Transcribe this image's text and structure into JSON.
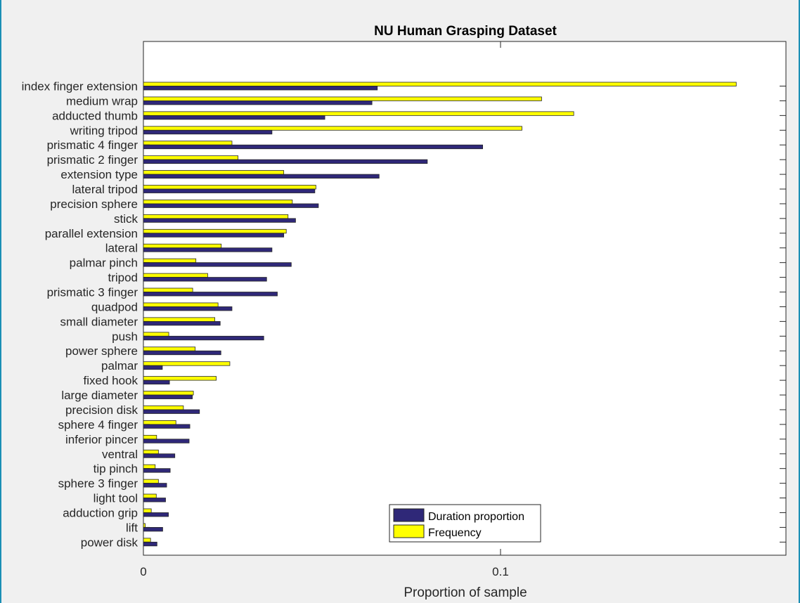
{
  "chart_data": {
    "type": "bar",
    "orientation": "horizontal",
    "title": "NU Human Grasping Dataset",
    "xlabel": "Proportion of sample",
    "ylabel": "",
    "xlim": [
      0,
      0.18
    ],
    "xticks": [
      0,
      0.1
    ],
    "xtick_labels": [
      "0",
      "0.1"
    ],
    "grid": false,
    "legend_position": "bottom-center",
    "categories": [
      "index finger extension",
      "medium wrap",
      "adducted thumb",
      "writing tripod",
      "prismatic 4 finger",
      "prismatic 2 finger",
      "extension type",
      "lateral tripod",
      "precision sphere",
      "stick",
      "parallel extension",
      "lateral",
      "palmar pinch",
      "tripod",
      "prismatic 3 finger",
      "quadpod",
      "small diameter",
      "push",
      "power sphere",
      "palmar",
      "fixed hook",
      "large diameter",
      "precision disk",
      "sphere 4 finger",
      "inferior pincer",
      "ventral",
      "tip pinch",
      "sphere 3 finger",
      "light tool",
      "adduction grip",
      "lift",
      "power disk"
    ],
    "series": [
      {
        "name": "Duration proportion",
        "color": "#2f2878",
        "values": [
          0.0655,
          0.064,
          0.0508,
          0.036,
          0.095,
          0.0795,
          0.066,
          0.048,
          0.049,
          0.0426,
          0.0393,
          0.036,
          0.0414,
          0.0345,
          0.0375,
          0.0248,
          0.0215,
          0.0337,
          0.0217,
          0.0053,
          0.0073,
          0.0137,
          0.0157,
          0.013,
          0.0128,
          0.0088,
          0.0075,
          0.0065,
          0.0062,
          0.007,
          0.0054,
          0.0038
        ]
      },
      {
        "name": "Frequency",
        "color": "#ffff00",
        "values": [
          0.166,
          0.1115,
          0.1205,
          0.106,
          0.0248,
          0.0265,
          0.0393,
          0.0483,
          0.0417,
          0.0405,
          0.04,
          0.0218,
          0.0147,
          0.018,
          0.0138,
          0.0209,
          0.02,
          0.0071,
          0.0145,
          0.0242,
          0.0204,
          0.014,
          0.0112,
          0.0091,
          0.0037,
          0.0042,
          0.0033,
          0.0042,
          0.0036,
          0.0022,
          0.0005,
          0.002
        ]
      }
    ]
  }
}
